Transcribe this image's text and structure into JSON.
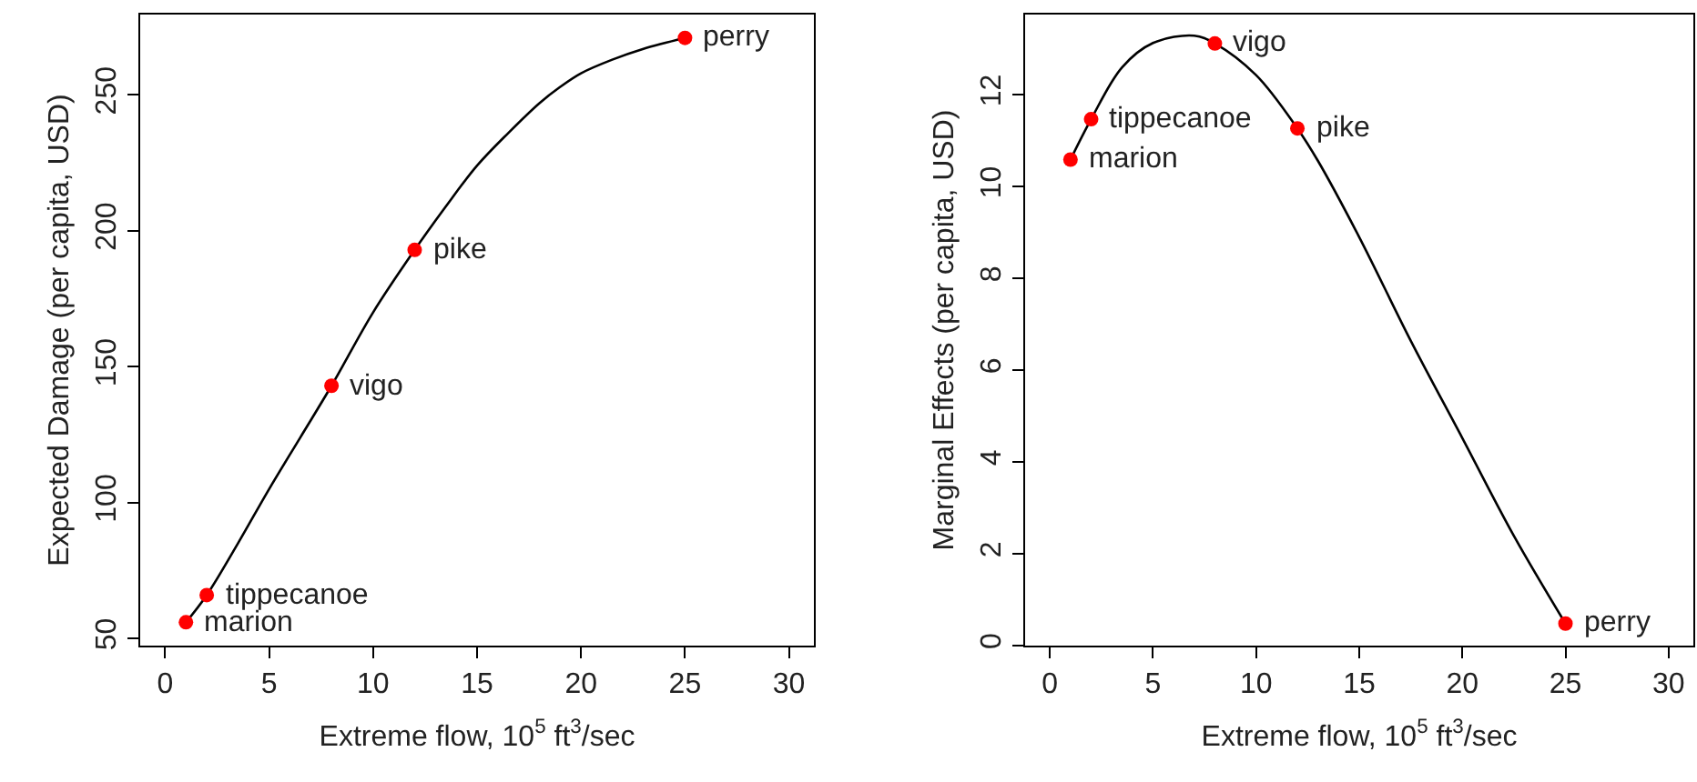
{
  "chart_data": [
    {
      "type": "scatter",
      "xlabel": "Extreme flow, 10$^{5}$ ft$^{3}$/sec",
      "ylabel": "Expected Damage (per capita, USD)",
      "xlim": [
        -1.2,
        31.2
      ],
      "xticks": [
        0,
        5,
        10,
        15,
        20,
        25,
        30
      ],
      "ylim": [
        47.4,
        279.6
      ],
      "yticks": [
        50,
        100,
        150,
        200,
        250
      ],
      "grid": false,
      "marker": "circle",
      "series": [
        {
          "type": "line",
          "color": "#000000",
          "line_style": "solid",
          "marker": "none",
          "x": [
            1,
            2,
            3.5,
            5,
            6.5,
            8,
            10,
            12,
            13.5,
            15,
            16.5,
            18,
            19,
            20,
            21.5,
            23,
            25
          ],
          "values": [
            56,
            66,
            85,
            105,
            124,
            143,
            170,
            193,
            209,
            224,
            236,
            247,
            253,
            258,
            263,
            267,
            271
          ]
        },
        {
          "type": "scatter",
          "color": "#ff0000",
          "x": [
            1,
            2,
            8,
            12,
            25
          ],
          "values": [
            56,
            66,
            143,
            193,
            271
          ]
        }
      ],
      "annotations": [
        {
          "text": "marion",
          "x": 1,
          "y": 56
        },
        {
          "text": "tippecanoe",
          "x": 2,
          "y": 66
        },
        {
          "text": "vigo",
          "x": 8,
          "y": 143
        },
        {
          "text": "pike",
          "x": 12,
          "y": 193
        },
        {
          "text": "perry",
          "x": 25,
          "y": 271
        }
      ]
    },
    {
      "type": "scatter",
      "xlabel": "Extreme flow, 10$^{5}$ ft$^{3}$/sec",
      "ylabel": "Marginal Effects (per capita, USD)",
      "xlim": [
        -1.2,
        31.2
      ],
      "xticks": [
        0,
        5,
        10,
        15,
        20,
        25,
        30
      ],
      "ylim": [
        0,
        13.75
      ],
      "yticks": [
        0,
        2,
        4,
        6,
        8,
        10,
        12
      ],
      "grid": false,
      "marker": "circle",
      "series": [
        {
          "type": "line",
          "color": "#000000",
          "line_style": "solid",
          "marker": "none",
          "x": [
            1,
            2,
            3.5,
            5,
            7,
            8,
            10,
            12,
            13,
            15,
            17.5,
            20,
            22.5,
            25
          ],
          "values": [
            10.59,
            11.47,
            12.6,
            13.13,
            13.29,
            13.12,
            12.43,
            11.27,
            10.56,
            8.9,
            6.64,
            4.52,
            2.39,
            0.48
          ]
        },
        {
          "type": "scatter",
          "color": "#ff0000",
          "x": [
            1,
            2,
            8,
            12,
            25
          ],
          "values": [
            10.59,
            11.47,
            13.12,
            11.27,
            0.48
          ]
        }
      ],
      "annotations": [
        {
          "text": "marion",
          "x": 1,
          "y": 10.59
        },
        {
          "text": "tippecanoe",
          "x": 2,
          "y": 11.47
        },
        {
          "text": "vigo",
          "x": 8,
          "y": 13.12
        },
        {
          "text": "pike",
          "x": 12,
          "y": 11.27
        },
        {
          "text": "perry",
          "x": 25,
          "y": 0.48
        }
      ]
    }
  ]
}
